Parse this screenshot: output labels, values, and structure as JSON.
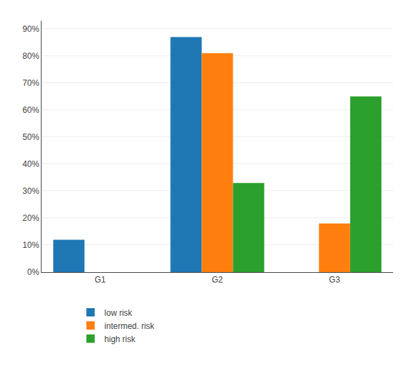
{
  "chart_data": {
    "type": "bar",
    "categories": [
      "G1",
      "G2",
      "G3"
    ],
    "series": [
      {
        "name": "low risk",
        "values": [
          0.12,
          0.87,
          0.0
        ]
      },
      {
        "name": "intermed. risk",
        "values": [
          0.0,
          0.81,
          0.18
        ]
      },
      {
        "name": "high risk",
        "values": [
          0.0,
          0.33,
          0.65
        ]
      }
    ],
    "ylim": [
      0,
      0.93
    ],
    "yticks": [
      {
        "value": 0.0,
        "label": "0%"
      },
      {
        "value": 0.1,
        "label": "10%"
      },
      {
        "value": 0.2,
        "label": "20%"
      },
      {
        "value": 0.3,
        "label": "30%"
      },
      {
        "value": 0.4,
        "label": "40%"
      },
      {
        "value": 0.5,
        "label": "50%"
      },
      {
        "value": 0.6,
        "label": "60%"
      },
      {
        "value": 0.7,
        "label": "70%"
      },
      {
        "value": 0.8,
        "label": "80%"
      },
      {
        "value": 0.9,
        "label": "90%"
      }
    ],
    "grid": true,
    "legend": "bottom"
  }
}
